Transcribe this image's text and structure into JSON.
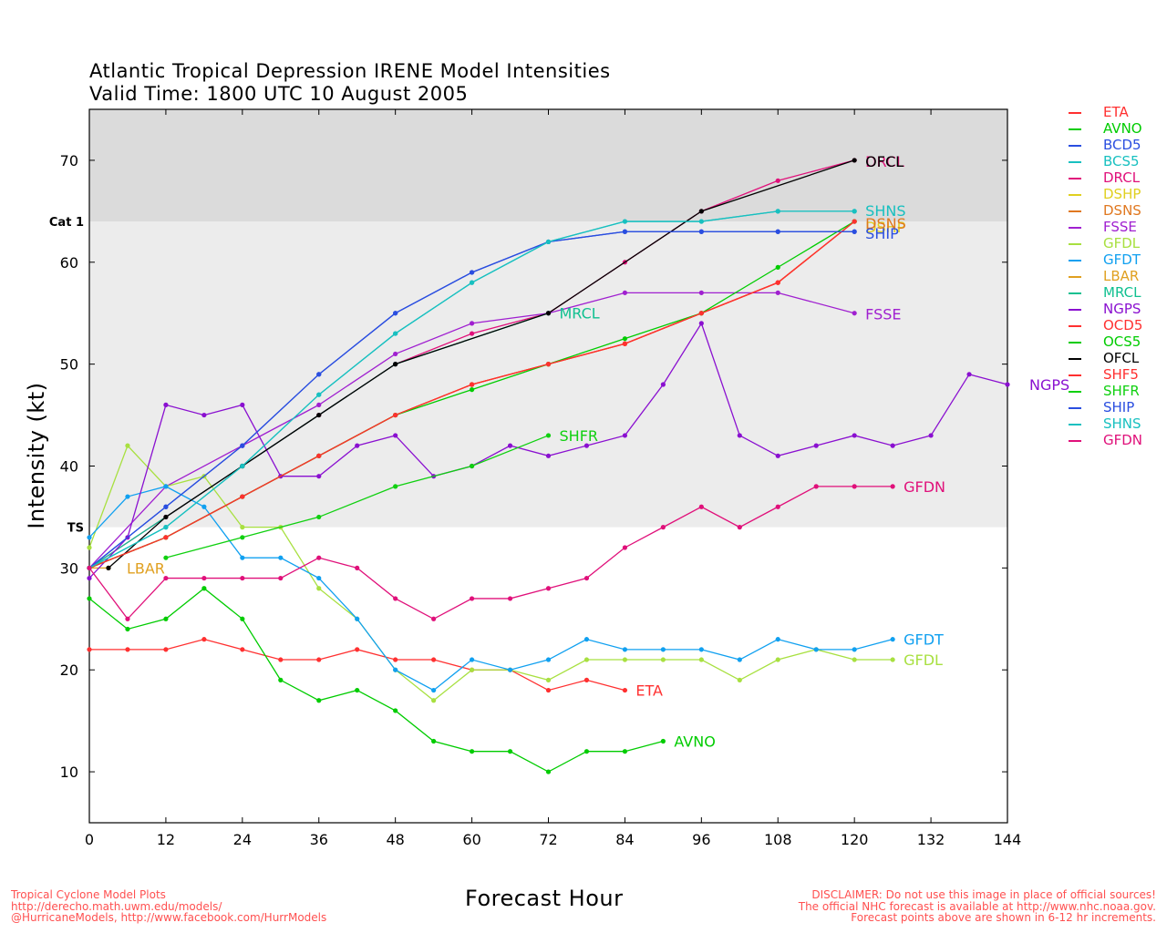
{
  "chart_data": {
    "type": "line",
    "title": "Atlantic Tropical Depression IRENE Model Intensities",
    "subtitle": "Valid Time: 1800 UTC 10 August 2005",
    "xlabel": "Forecast Hour",
    "ylabel": "Intensity (kt)",
    "xlim": [
      0,
      144
    ],
    "ylim": [
      5,
      75
    ],
    "xticks": [
      0,
      12,
      24,
      36,
      48,
      60,
      72,
      84,
      96,
      108,
      120,
      132,
      144
    ],
    "yticks": [
      10,
      20,
      30,
      40,
      50,
      60,
      70
    ],
    "bands": [
      {
        "label": "TS",
        "from": 34,
        "to": 64,
        "color": "#ececec"
      },
      {
        "label": "Cat 1",
        "from": 64,
        "to": 75,
        "color": "#dbdbdb"
      }
    ],
    "series": [
      {
        "name": "ETA",
        "color": "#ff3030",
        "end_label": "ETA",
        "x": [
          0,
          6,
          12,
          18,
          24,
          30,
          36,
          42,
          48,
          54,
          60,
          66,
          72,
          78,
          84
        ],
        "y": [
          22,
          22,
          22,
          23,
          22,
          21,
          21,
          22,
          21,
          21,
          20,
          20,
          18,
          19,
          18
        ]
      },
      {
        "name": "AVNO",
        "color": "#00cc00",
        "end_label": "AVNO",
        "x": [
          0,
          6,
          12,
          18,
          24,
          30,
          36,
          42,
          48,
          54,
          60,
          66,
          72,
          78,
          84,
          90
        ],
        "y": [
          27,
          24,
          25,
          28,
          25,
          19,
          17,
          18,
          16,
          13,
          12,
          12,
          10,
          12,
          12,
          13
        ]
      },
      {
        "name": "BCD5",
        "color": "#2a4ee0",
        "end_label": "",
        "x": [
          0,
          12,
          24,
          36,
          48,
          60,
          72,
          84,
          96,
          108,
          120
        ],
        "y": [
          30,
          36,
          42,
          49,
          55,
          59,
          62,
          63,
          63,
          63,
          63
        ]
      },
      {
        "name": "BCS5",
        "color": "#18c0c0",
        "end_label": "",
        "x": [
          0,
          12,
          24,
          36,
          48,
          60,
          72,
          84,
          96,
          108,
          120
        ],
        "y": [
          30,
          34,
          40,
          47,
          53,
          58,
          62,
          64,
          64,
          65,
          65
        ]
      },
      {
        "name": "DRCL",
        "color": "#e0107a",
        "end_label": "DRCL",
        "x": [
          0,
          12,
          24,
          36,
          48,
          60,
          72,
          84,
          96,
          108,
          120
        ],
        "y": [
          30,
          35,
          40,
          45,
          50,
          53,
          55,
          60,
          65,
          68,
          70
        ]
      },
      {
        "name": "DSHP",
        "color": "#e0d020",
        "end_label": "DSHP",
        "x": [
          0,
          12,
          24,
          36,
          48,
          60,
          72,
          84,
          96,
          108,
          120
        ],
        "y": [
          30,
          33,
          37,
          41,
          45,
          48,
          50,
          52,
          55,
          58,
          64
        ]
      },
      {
        "name": "DSNS",
        "color": "#e07820",
        "end_label": "DSNS",
        "x": [
          0,
          12,
          24,
          36,
          48,
          60,
          72,
          84,
          96,
          108,
          120
        ],
        "y": [
          30,
          33,
          37,
          41,
          45,
          48,
          50,
          52,
          55,
          58,
          64
        ]
      },
      {
        "name": "FSSE",
        "color": "#a020d0",
        "end_label": "FSSE",
        "x": [
          0,
          12,
          24,
          36,
          48,
          60,
          72,
          84,
          96,
          108,
          120
        ],
        "y": [
          30,
          38,
          42,
          46,
          51,
          54,
          55,
          57,
          57,
          57,
          55
        ]
      },
      {
        "name": "GFDL",
        "color": "#a8e040",
        "end_label": "GFDL",
        "x": [
          0,
          6,
          12,
          18,
          24,
          30,
          36,
          42,
          48,
          54,
          60,
          66,
          72,
          78,
          84,
          90,
          96,
          102,
          108,
          114,
          120,
          126
        ],
        "y": [
          32,
          42,
          38,
          39,
          34,
          34,
          28,
          25,
          20,
          17,
          20,
          20,
          19,
          21,
          21,
          21,
          21,
          19,
          21,
          22,
          21,
          21
        ]
      },
      {
        "name": "GFDT",
        "color": "#10a0f0",
        "end_label": "GFDT",
        "x": [
          0,
          6,
          12,
          18,
          24,
          30,
          36,
          42,
          48,
          54,
          60,
          66,
          72,
          78,
          84,
          90,
          96,
          102,
          108,
          114,
          120,
          126
        ],
        "y": [
          33,
          37,
          38,
          36,
          31,
          31,
          29,
          25,
          20,
          18,
          21,
          20,
          21,
          23,
          22,
          22,
          22,
          21,
          23,
          22,
          22,
          23
        ]
      },
      {
        "name": "LBAR",
        "color": "#e0a020",
        "end_label": "LBAR",
        "x": [
          0,
          3
        ],
        "y": [
          30,
          30
        ]
      },
      {
        "name": "MRCL",
        "color": "#10c090",
        "end_label": "MRCL",
        "x": [
          0,
          24,
          48,
          72
        ],
        "y": [
          30,
          40,
          50,
          55
        ]
      },
      {
        "name": "NGPS",
        "color": "#8a10d0",
        "end_label": "NGPS",
        "x": [
          0,
          6,
          12,
          18,
          24,
          30,
          36,
          42,
          48,
          54,
          60,
          66,
          72,
          78,
          84,
          90,
          96,
          102,
          108,
          114,
          120,
          126,
          132,
          138,
          144
        ],
        "y": [
          29,
          33,
          46,
          45,
          46,
          39,
          39,
          42,
          43,
          39,
          40,
          42,
          41,
          42,
          43,
          48,
          54,
          43,
          41,
          42,
          43,
          42,
          43,
          49,
          48
        ]
      },
      {
        "name": "OCD5",
        "color": "#ff3030",
        "end_label": "",
        "x": [
          0,
          12,
          24,
          36,
          48,
          60,
          72,
          84,
          96,
          108,
          120
        ],
        "y": [
          30,
          33,
          37,
          41,
          45,
          48,
          50,
          52,
          55,
          58,
          64
        ]
      },
      {
        "name": "OCS5",
        "color": "#00cc00",
        "end_label": "",
        "x": [
          0,
          12,
          24,
          36,
          48,
          60,
          72,
          84,
          96,
          108,
          120
        ],
        "y": [
          30,
          33,
          37,
          41,
          45,
          47.5,
          50,
          52.5,
          55,
          59.5,
          64
        ]
      },
      {
        "name": "OFCL",
        "color": "#000000",
        "end_label": "OFCL",
        "x": [
          3,
          12,
          24,
          36,
          48,
          72,
          96,
          120
        ],
        "y": [
          30,
          35,
          40,
          45,
          50,
          55,
          65,
          70
        ]
      },
      {
        "name": "SHF5",
        "color": "#ff3030",
        "end_label": "",
        "x": [
          0,
          12,
          24,
          36,
          48,
          60,
          72,
          84,
          96,
          108,
          120
        ],
        "y": [
          30,
          33,
          37,
          41,
          45,
          48,
          50,
          52,
          55,
          58,
          64
        ]
      },
      {
        "name": "SHFR",
        "color": "#10d010",
        "end_label": "SHFR",
        "x": [
          12,
          24,
          36,
          48,
          60,
          72
        ],
        "y": [
          31,
          33,
          35,
          38,
          40,
          43
        ]
      },
      {
        "name": "SHIP",
        "color": "#2a4ee0",
        "end_label": "SHIP",
        "x": [
          0,
          12,
          24,
          36,
          48,
          60,
          72,
          84,
          96,
          108,
          120
        ],
        "y": [
          30,
          36,
          42,
          49,
          55,
          59,
          62,
          63,
          63,
          63,
          63
        ]
      },
      {
        "name": "SHNS",
        "color": "#18c0c0",
        "end_label": "SHNS",
        "x": [
          0,
          12,
          24,
          36,
          48,
          60,
          72,
          84,
          96,
          108,
          120
        ],
        "y": [
          30,
          34,
          40,
          47,
          53,
          58,
          62,
          64,
          64,
          65,
          65
        ]
      },
      {
        "name": "GFDN",
        "color": "#e0107a",
        "end_label": "GFDN",
        "x": [
          0,
          6,
          12,
          18,
          24,
          30,
          36,
          42,
          48,
          54,
          60,
          66,
          72,
          78,
          84,
          90,
          96,
          102,
          108,
          114,
          120,
          126
        ],
        "y": [
          30,
          25,
          29,
          29,
          29,
          29,
          31,
          30,
          27,
          25,
          27,
          27,
          28,
          29,
          32,
          34,
          36,
          34,
          36,
          38,
          38,
          38
        ]
      }
    ]
  },
  "footer": {
    "left": [
      "Tropical Cyclone Model Plots",
      "http://derecho.math.uwm.edu/models/",
      "@HurricaneModels, http://www.facebook.com/HurrModels"
    ],
    "right": [
      "DISCLAIMER: Do not use this image in place of official sources!",
      "The official NHC forecast is available at http://www.nhc.noaa.gov.",
      "Forecast points above are shown in 6-12 hr increments."
    ]
  }
}
